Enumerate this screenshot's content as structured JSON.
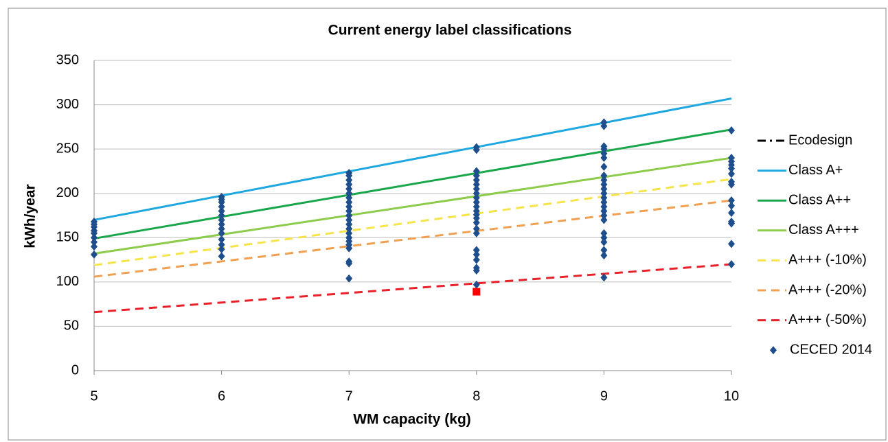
{
  "chart_data": {
    "type": "scatter",
    "title": "Current energy label classifications",
    "x_label": "WM capacity (kg)",
    "y_label": "kWh/year",
    "xlim": [
      5,
      10
    ],
    "xticks": [
      5,
      6,
      7,
      8,
      9,
      10
    ],
    "ylim": [
      0,
      350
    ],
    "yticks": [
      0,
      50,
      100,
      150,
      200,
      250,
      300,
      350
    ],
    "grid": true,
    "legend": "right",
    "series": [
      {
        "name": "Ecodesign",
        "color": "#000000",
        "style": "dashdot",
        "x": [
          5,
          10
        ],
        "values": [
          null,
          null
        ]
      },
      {
        "name": "Class A+",
        "color": "#1fa8e0",
        "style": "solid",
        "x": [
          5,
          10
        ],
        "values": [
          170,
          307
        ]
      },
      {
        "name": "Class A++",
        "color": "#1aa64a",
        "style": "solid",
        "x": [
          5,
          10
        ],
        "values": [
          149,
          272
        ]
      },
      {
        "name": "Class A+++",
        "color": "#8ccc4a",
        "style": "solid",
        "x": [
          5,
          10
        ],
        "values": [
          132,
          240
        ]
      },
      {
        "name": "A+++ (-10%)",
        "color": "#f5e44a",
        "style": "dashed",
        "x": [
          5,
          10
        ],
        "values": [
          119,
          216
        ]
      },
      {
        "name": "A+++ (-20%)",
        "color": "#f0a050",
        "style": "dashed",
        "x": [
          5,
          10
        ],
        "values": [
          106,
          192
        ]
      },
      {
        "name": "A+++ (-50%)",
        "color": "#e8202a",
        "style": "dashed",
        "x": [
          5,
          10
        ],
        "values": [
          66,
          120
        ]
      },
      {
        "name": "CECED 2014",
        "color": "#1f4e8c",
        "style": "marker",
        "marker": "diamond",
        "x": [
          5,
          5,
          5,
          5,
          5,
          5,
          5,
          5,
          5,
          6,
          6,
          6,
          6,
          6,
          6,
          6,
          6,
          6,
          6,
          6,
          6,
          6,
          6,
          7,
          7,
          7,
          7,
          7,
          7,
          7,
          7,
          7,
          7,
          7,
          7,
          7,
          7,
          7,
          7,
          7,
          7,
          7,
          7,
          7,
          7,
          8,
          8,
          8,
          8,
          8,
          8,
          8,
          8,
          8,
          8,
          8,
          8,
          8,
          8,
          8,
          8,
          8,
          8,
          8,
          8,
          8,
          8,
          8,
          9,
          9,
          9,
          9,
          9,
          9,
          9,
          9,
          9,
          9,
          9,
          9,
          9,
          9,
          9,
          9,
          9,
          9,
          9,
          9,
          9,
          9,
          9,
          9,
          10,
          10,
          10,
          10,
          10,
          10,
          10,
          10,
          10,
          10,
          10,
          10,
          10,
          10,
          10
        ],
        "values": [
          131,
          140,
          145,
          150,
          155,
          158,
          162,
          165,
          168,
          129,
          137,
          142,
          148,
          155,
          160,
          165,
          170,
          175,
          180,
          185,
          190,
          193,
          196,
          104,
          121,
          123,
          138,
          142,
          146,
          150,
          155,
          160,
          165,
          170,
          175,
          180,
          185,
          190,
          195,
          200,
          205,
          210,
          215,
          220,
          223,
          97,
          113,
          116,
          125,
          131,
          136,
          155,
          160,
          167,
          172,
          176,
          180,
          185,
          190,
          195,
          200,
          205,
          210,
          215,
          220,
          225,
          249,
          252,
          105,
          130,
          136,
          145,
          150,
          155,
          170,
          175,
          180,
          185,
          190,
          195,
          200,
          205,
          210,
          215,
          220,
          230,
          240,
          245,
          250,
          253,
          276,
          280,
          120,
          143,
          166,
          168,
          178,
          186,
          192,
          210,
          213,
          222,
          228,
          232,
          236,
          240,
          271
        ]
      },
      {
        "color": "#ff0000",
        "style": "marker",
        "marker": "square",
        "x": [
          8
        ],
        "values": [
          89
        ]
      }
    ]
  }
}
